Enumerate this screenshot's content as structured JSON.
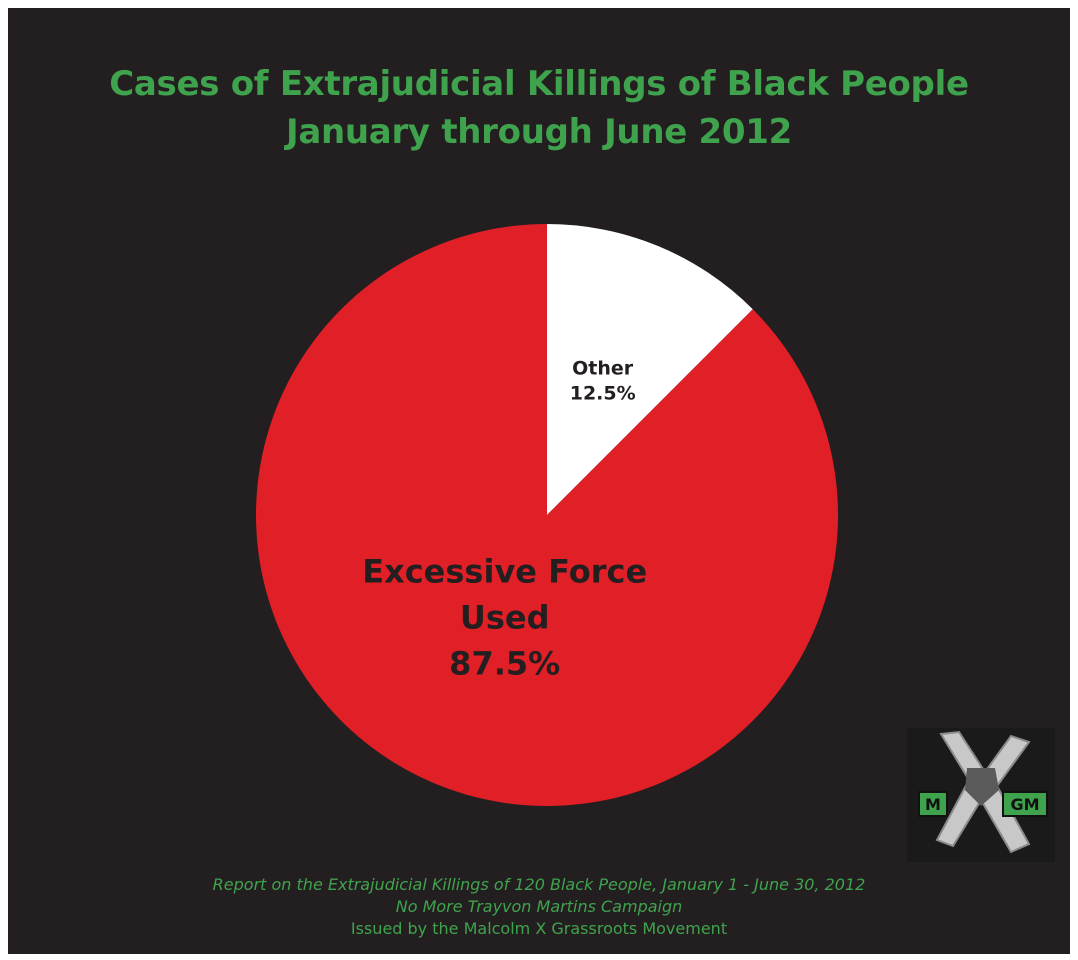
{
  "colors": {
    "background": "#231f20",
    "title": "#3fa34d",
    "footer": "#3fa34d",
    "slice_excessive": "#e11f26",
    "slice_other": "#ffffff",
    "label_text": "#231f20"
  },
  "title": {
    "line1": "Cases of Extrajudicial Killings of Black People",
    "line2": "January through June 2012"
  },
  "chart_data": {
    "type": "pie",
    "title": "Cases of Extrajudicial Killings of Black People January through June 2012",
    "slices": [
      {
        "label": "Other",
        "value": 12.5,
        "value_label": "12.5%",
        "color": "#ffffff"
      },
      {
        "label": "Excessive Force Used",
        "label_lines": [
          "Excessive Force",
          "Used"
        ],
        "value": 87.5,
        "value_label": "87.5%",
        "color": "#e11f26"
      }
    ]
  },
  "footer": {
    "line1": "Report on the Extrajudicial Killings of 120 Black People,  January 1 - June 30, 2012",
    "line2": "No More Trayvon Martins Campaign",
    "line3": "Issued by the Malcolm X Grassroots Movement"
  },
  "logo": {
    "left_letter": "M",
    "right_letters": "GM",
    "icon": "mxgm-logo-icon"
  }
}
